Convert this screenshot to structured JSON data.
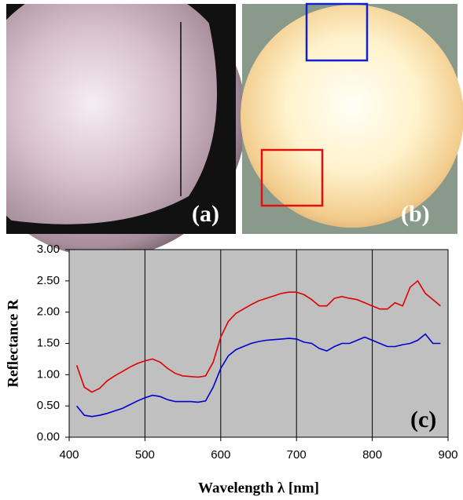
{
  "panels": {
    "a": "(a)",
    "b": "(b)"
  },
  "chart_data": {
    "type": "line",
    "annotation": "(c)",
    "x_label": "Wavelength λ [nm]",
    "y_label": "Reflectance R",
    "x": [
      410,
      420,
      430,
      440,
      450,
      460,
      470,
      480,
      490,
      500,
      510,
      520,
      530,
      540,
      550,
      560,
      570,
      580,
      590,
      600,
      610,
      620,
      630,
      640,
      650,
      660,
      670,
      680,
      690,
      700,
      710,
      720,
      730,
      740,
      750,
      760,
      770,
      780,
      790,
      800,
      810,
      820,
      830,
      840,
      850,
      860,
      870,
      880,
      890
    ],
    "series": [
      {
        "color": "#e00000",
        "values": [
          1.15,
          0.8,
          0.72,
          0.78,
          0.9,
          0.98,
          1.05,
          1.12,
          1.18,
          1.22,
          1.25,
          1.2,
          1.1,
          1.02,
          0.98,
          0.97,
          0.96,
          0.98,
          1.2,
          1.6,
          1.85,
          1.98,
          2.05,
          2.12,
          2.18,
          2.22,
          2.26,
          2.3,
          2.32,
          2.32,
          2.28,
          2.2,
          2.1,
          2.1,
          2.22,
          2.25,
          2.22,
          2.2,
          2.15,
          2.1,
          2.05,
          2.05,
          2.15,
          2.1,
          2.4,
          2.5,
          2.3,
          2.2,
          2.1
        ]
      },
      {
        "color": "#0000d0",
        "values": [
          0.5,
          0.35,
          0.33,
          0.35,
          0.38,
          0.42,
          0.46,
          0.52,
          0.58,
          0.63,
          0.67,
          0.65,
          0.6,
          0.57,
          0.57,
          0.57,
          0.56,
          0.58,
          0.8,
          1.1,
          1.3,
          1.4,
          1.45,
          1.5,
          1.53,
          1.55,
          1.56,
          1.57,
          1.58,
          1.57,
          1.52,
          1.5,
          1.42,
          1.38,
          1.45,
          1.5,
          1.5,
          1.55,
          1.6,
          1.55,
          1.5,
          1.45,
          1.45,
          1.48,
          1.5,
          1.55,
          1.65,
          1.5,
          1.5
        ]
      }
    ],
    "xlim": [
      400,
      900
    ],
    "xticks": [
      400,
      500,
      600,
      700,
      800,
      900
    ],
    "ylim": [
      0,
      3
    ],
    "yticks": [
      {
        "value": 0,
        "label": "0.00"
      },
      {
        "value": 0.5,
        "label": "0.50"
      },
      {
        "value": 1,
        "label": "1.00"
      },
      {
        "value": 1.5,
        "label": "1.50"
      },
      {
        "value": 2,
        "label": "2.00"
      },
      {
        "value": 2.5,
        "label": "2.50"
      },
      {
        "value": 3,
        "label": "3.00"
      }
    ],
    "grid": "x",
    "background": "#c0c0c0"
  }
}
